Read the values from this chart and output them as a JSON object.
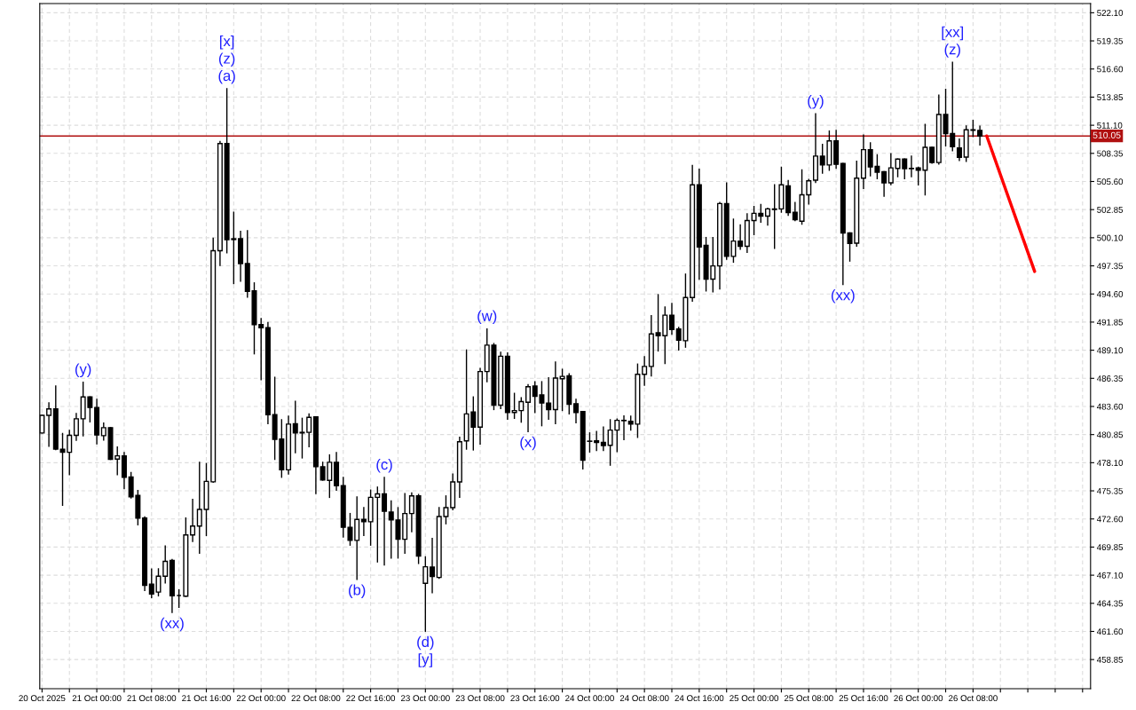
{
  "chart_data": {
    "type": "candlestick",
    "xlim": [
      "2025-10-20T15:40",
      "2025-10-27T01:10"
    ],
    "ylim": [
      456.0,
      523.0
    ],
    "grid": true,
    "yticks": [
      {
        "value": 522.1,
        "label": "522.10"
      },
      {
        "value": 519.35,
        "label": "519.35"
      },
      {
        "value": 516.6,
        "label": "516.60"
      },
      {
        "value": 513.85,
        "label": "513.85"
      },
      {
        "value": 511.1,
        "label": "511.10"
      },
      {
        "value": 508.35,
        "label": "508.35"
      },
      {
        "value": 505.6,
        "label": "505.60"
      },
      {
        "value": 502.85,
        "label": "502.85"
      },
      {
        "value": 500.1,
        "label": "500.10"
      },
      {
        "value": 497.35,
        "label": "497.35"
      },
      {
        "value": 494.6,
        "label": "494.60"
      },
      {
        "value": 491.85,
        "label": "491.85"
      },
      {
        "value": 489.1,
        "label": "489.10"
      },
      {
        "value": 486.35,
        "label": "486.35"
      },
      {
        "value": 483.6,
        "label": "483.60"
      },
      {
        "value": 480.85,
        "label": "480.85"
      },
      {
        "value": 478.1,
        "label": "478.10"
      },
      {
        "value": 475.35,
        "label": "475.35"
      },
      {
        "value": 472.6,
        "label": "472.60"
      },
      {
        "value": 469.85,
        "label": "469.85"
      },
      {
        "value": 467.1,
        "label": "467.10"
      },
      {
        "value": 464.35,
        "label": "464.35"
      },
      {
        "value": 461.6,
        "label": "461.60"
      },
      {
        "value": 458.85,
        "label": "458.85"
      }
    ],
    "xticks": [
      {
        "value": "2025-10-20T16:00",
        "label": "20 Oct 2025"
      },
      {
        "value": "2025-10-20T20:00",
        "label": null
      },
      {
        "value": "2025-10-21T00:00",
        "label": "21 Oct 00:00"
      },
      {
        "value": "2025-10-21T04:00",
        "label": null
      },
      {
        "value": "2025-10-21T08:00",
        "label": "21 Oct 08:00"
      },
      {
        "value": "2025-10-21T12:00",
        "label": null
      },
      {
        "value": "2025-10-21T16:00",
        "label": "21 Oct 16:00"
      },
      {
        "value": "2025-10-21T20:00",
        "label": null
      },
      {
        "value": "2025-10-22T00:00",
        "label": "22 Oct 00:00"
      },
      {
        "value": "2025-10-22T04:00",
        "label": null
      },
      {
        "value": "2025-10-22T08:00",
        "label": "22 Oct 08:00"
      },
      {
        "value": "2025-10-22T12:00",
        "label": null
      },
      {
        "value": "2025-10-22T16:00",
        "label": "22 Oct 16:00"
      },
      {
        "value": "2025-10-22T20:00",
        "label": null
      },
      {
        "value": "2025-10-23T00:00",
        "label": "23 Oct 00:00"
      },
      {
        "value": "2025-10-23T04:00",
        "label": null
      },
      {
        "value": "2025-10-23T08:00",
        "label": "23 Oct 08:00"
      },
      {
        "value": "2025-10-23T12:00",
        "label": null
      },
      {
        "value": "2025-10-23T16:00",
        "label": "23 Oct 16:00"
      },
      {
        "value": "2025-10-23T20:00",
        "label": null
      },
      {
        "value": "2025-10-24T00:00",
        "label": "24 Oct 00:00"
      },
      {
        "value": "2025-10-24T04:00",
        "label": null
      },
      {
        "value": "2025-10-24T08:00",
        "label": "24 Oct 08:00"
      },
      {
        "value": "2025-10-24T12:00",
        "label": null
      },
      {
        "value": "2025-10-24T16:00",
        "label": "24 Oct 16:00"
      },
      {
        "value": "2025-10-24T20:00",
        "label": null
      },
      {
        "value": "2025-10-25T00:00",
        "label": "25 Oct 00:00"
      },
      {
        "value": "2025-10-25T04:00",
        "label": null
      },
      {
        "value": "2025-10-25T08:00",
        "label": "25 Oct 08:00"
      },
      {
        "value": "2025-10-25T12:00",
        "label": null
      },
      {
        "value": "2025-10-25T16:00",
        "label": "25 Oct 16:00"
      },
      {
        "value": "2025-10-25T20:00",
        "label": null
      },
      {
        "value": "2025-10-26T00:00",
        "label": "26 Oct 00:00"
      },
      {
        "value": "2025-10-26T04:00",
        "label": null
      },
      {
        "value": "2025-10-26T08:00",
        "label": "26 Oct 08:00"
      },
      {
        "value": "2025-10-26T12:00",
        "label": null
      },
      {
        "value": "2025-10-26T16:00",
        "label": null
      },
      {
        "value": "2025-10-26T20:00",
        "label": null
      },
      {
        "value": "2025-10-27T00:00",
        "label": null
      }
    ],
    "ref_lines": [
      {
        "axis": "y",
        "value": 510.05,
        "label": "510.05",
        "color": "#b01010"
      }
    ],
    "series": [
      {
        "color": "#000000",
        "x": [
          "2025-10-20T16:00",
          "2025-10-20T17:00",
          "2025-10-20T18:00",
          "2025-10-20T19:00",
          "2025-10-20T20:00",
          "2025-10-20T21:00",
          "2025-10-20T22:00",
          "2025-10-20T23:00",
          "2025-10-21T00:00",
          "2025-10-21T01:00",
          "2025-10-21T02:00",
          "2025-10-21T03:00",
          "2025-10-21T04:00",
          "2025-10-21T05:00",
          "2025-10-21T06:00",
          "2025-10-21T07:00",
          "2025-10-21T08:00",
          "2025-10-21T09:00",
          "2025-10-21T10:00",
          "2025-10-21T11:00",
          "2025-10-21T12:00",
          "2025-10-21T13:00",
          "2025-10-21T14:00",
          "2025-10-21T15:00",
          "2025-10-21T16:00",
          "2025-10-21T17:00",
          "2025-10-21T18:00",
          "2025-10-21T19:00",
          "2025-10-21T20:00",
          "2025-10-21T21:00",
          "2025-10-21T22:00",
          "2025-10-21T23:00",
          "2025-10-22T00:00",
          "2025-10-22T01:00",
          "2025-10-22T02:00",
          "2025-10-22T03:00",
          "2025-10-22T04:00",
          "2025-10-22T05:00",
          "2025-10-22T06:00",
          "2025-10-22T07:00",
          "2025-10-22T08:00",
          "2025-10-22T09:00",
          "2025-10-22T10:00",
          "2025-10-22T11:00",
          "2025-10-22T12:00",
          "2025-10-22T13:00",
          "2025-10-22T14:00",
          "2025-10-22T15:00",
          "2025-10-22T16:00",
          "2025-10-22T17:00",
          "2025-10-22T18:00",
          "2025-10-22T19:00",
          "2025-10-22T20:00",
          "2025-10-22T21:00",
          "2025-10-22T22:00",
          "2025-10-22T23:00",
          "2025-10-23T00:00",
          "2025-10-23T01:00",
          "2025-10-23T02:00",
          "2025-10-23T03:00",
          "2025-10-23T04:00",
          "2025-10-23T05:00",
          "2025-10-23T06:00",
          "2025-10-23T07:00",
          "2025-10-23T08:00",
          "2025-10-23T09:00",
          "2025-10-23T10:00",
          "2025-10-23T11:00",
          "2025-10-23T12:00",
          "2025-10-23T13:00",
          "2025-10-23T14:00",
          "2025-10-23T15:00",
          "2025-10-23T16:00",
          "2025-10-23T17:00",
          "2025-10-23T18:00",
          "2025-10-23T19:00",
          "2025-10-23T20:00",
          "2025-10-23T21:00",
          "2025-10-23T22:00",
          "2025-10-23T23:00",
          "2025-10-24T00:00",
          "2025-10-24T01:00",
          "2025-10-24T02:00",
          "2025-10-24T03:00",
          "2025-10-24T04:00",
          "2025-10-24T05:00",
          "2025-10-24T06:00",
          "2025-10-24T07:00",
          "2025-10-24T08:00",
          "2025-10-24T09:00",
          "2025-10-24T10:00",
          "2025-10-24T11:00",
          "2025-10-24T12:00",
          "2025-10-24T13:00",
          "2025-10-24T14:00",
          "2025-10-24T15:00",
          "2025-10-24T16:00",
          "2025-10-24T17:00",
          "2025-10-24T18:00",
          "2025-10-24T19:00",
          "2025-10-24T20:00",
          "2025-10-24T21:00",
          "2025-10-24T22:00",
          "2025-10-24T23:00",
          "2025-10-25T00:00",
          "2025-10-25T01:00",
          "2025-10-25T02:00",
          "2025-10-25T03:00",
          "2025-10-25T04:00",
          "2025-10-25T05:00",
          "2025-10-25T06:00",
          "2025-10-25T07:00",
          "2025-10-25T08:00",
          "2025-10-25T09:00",
          "2025-10-25T10:00",
          "2025-10-25T11:00",
          "2025-10-25T12:00",
          "2025-10-25T13:00",
          "2025-10-25T14:00",
          "2025-10-25T15:00",
          "2025-10-25T16:00",
          "2025-10-25T17:00",
          "2025-10-25T18:00",
          "2025-10-25T19:00",
          "2025-10-25T20:00",
          "2025-10-25T21:00",
          "2025-10-25T22:00",
          "2025-10-25T23:00",
          "2025-10-26T00:00",
          "2025-10-26T01:00",
          "2025-10-26T02:00",
          "2025-10-26T03:00",
          "2025-10-26T04:00",
          "2025-10-26T05:00",
          "2025-10-26T06:00",
          "2025-10-26T07:00",
          "2025-10-26T08:00",
          "2025-10-26T09:00"
        ],
        "ohlc": [
          [
            481.01,
            482.73,
            481.01,
            482.73
          ],
          [
            482.73,
            483.96,
            479.72,
            483.36
          ],
          [
            483.36,
            485.59,
            479.38,
            479.43
          ],
          [
            479.41,
            480.95,
            473.93,
            479.12
          ],
          [
            479.12,
            481.27,
            476.94,
            480.78
          ],
          [
            480.78,
            482.9,
            480.29,
            482.39
          ],
          [
            482.39,
            485.97,
            480.72,
            484.53
          ],
          [
            484.53,
            484.53,
            482.1,
            483.5
          ],
          [
            483.5,
            484.3,
            479.95,
            480.81
          ],
          [
            480.75,
            481.98,
            480.32,
            481.53
          ],
          [
            481.53,
            481.53,
            478.43,
            478.43
          ],
          [
            478.46,
            479.63,
            476.94,
            478.77
          ],
          [
            478.77,
            479.09,
            475.57,
            476.68
          ],
          [
            476.71,
            477.14,
            474.65,
            474.76
          ],
          [
            474.91,
            475.37,
            472.04,
            472.67
          ],
          [
            472.7,
            472.79,
            465.6,
            466.11
          ],
          [
            466.23,
            467.69,
            464.91,
            465.25
          ],
          [
            465.45,
            467.72,
            465.08,
            467.0
          ],
          [
            467.0,
            469.95,
            466.34,
            468.46
          ],
          [
            468.55,
            468.63,
            463.45,
            465.08
          ],
          [
            465.11,
            465.65,
            463.96,
            465.11
          ],
          [
            465.05,
            472.7,
            465.05,
            471.04
          ],
          [
            471.04,
            474.51,
            470.41,
            471.9
          ],
          [
            471.9,
            478.14,
            469.26,
            473.53
          ],
          [
            473.53,
            478.0,
            470.98,
            476.28
          ],
          [
            476.23,
            500.06,
            476.2,
            498.83
          ],
          [
            498.83,
            509.51,
            497.4,
            509.31
          ],
          [
            509.31,
            514.67,
            498.63,
            499.92
          ],
          [
            499.92,
            502.58,
            495.62,
            500.0
          ],
          [
            500.0,
            500.72,
            495.85,
            497.57
          ],
          [
            497.57,
            500.78,
            494.3,
            494.85
          ],
          [
            494.9,
            495.68,
            488.75,
            491.6
          ],
          [
            491.6,
            492.2,
            486.22,
            491.3
          ],
          [
            491.3,
            491.8,
            481.93,
            482.78
          ],
          [
            482.81,
            486.45,
            478.43,
            480.38
          ],
          [
            480.41,
            482.3,
            476.68,
            477.4
          ],
          [
            477.4,
            482.64,
            477.0,
            481.87
          ],
          [
            481.92,
            484.1,
            479.09,
            481.01
          ],
          [
            481.01,
            482.44,
            478.57,
            481.07
          ],
          [
            481.07,
            482.87,
            479.66,
            482.53
          ],
          [
            482.58,
            482.58,
            475.08,
            477.71
          ],
          [
            477.71,
            478.14,
            476.4,
            476.42
          ],
          [
            476.37,
            478.86,
            474.71,
            478.14
          ],
          [
            478.14,
            479.09,
            475.42,
            475.85
          ],
          [
            475.85,
            476.65,
            470.84,
            471.78
          ],
          [
            471.78,
            473.13,
            470.04,
            470.5
          ],
          [
            470.5,
            474.76,
            466.69,
            472.56
          ],
          [
            472.56,
            473.7,
            470.98,
            472.33
          ],
          [
            472.33,
            475.42,
            470.04,
            474.71
          ],
          [
            474.71,
            475.71,
            468.4,
            475.05
          ],
          [
            475.05,
            476.65,
            468.11,
            473.36
          ],
          [
            473.27,
            474.36,
            468.78,
            472.5
          ],
          [
            472.5,
            473.7,
            468.78,
            470.61
          ],
          [
            470.61,
            475.08,
            469.26,
            473.13
          ],
          [
            473.13,
            475.14,
            471.36,
            474.85
          ],
          [
            474.85,
            474.99,
            468.25,
            468.98
          ],
          [
            466.31,
            468.89,
            461.62,
            467.92
          ],
          [
            467.89,
            470.7,
            465.4,
            466.97
          ],
          [
            466.88,
            473.7,
            466.8,
            472.84
          ],
          [
            472.84,
            474.85,
            472.13,
            473.7
          ],
          [
            473.7,
            476.99,
            473.5,
            476.22
          ],
          [
            476.22,
            480.58,
            474.71,
            480.15
          ],
          [
            480.24,
            489.12,
            479.43,
            482.87
          ],
          [
            483.07,
            484.53,
            479.35,
            481.58
          ],
          [
            481.58,
            487.31,
            479.92,
            487.02
          ],
          [
            487.02,
            491.18,
            486.02,
            489.6
          ],
          [
            489.6,
            489.75,
            483.3,
            483.73
          ],
          [
            483.73,
            488.89,
            483.39,
            488.51
          ],
          [
            488.51,
            488.83,
            482.36,
            483.01
          ],
          [
            483.01,
            484.88,
            482.44,
            483.2
          ],
          [
            483.2,
            484.45,
            482.07,
            484.07
          ],
          [
            484.01,
            485.74,
            481.15,
            485.53
          ],
          [
            485.59,
            486.02,
            483.01,
            484.59
          ],
          [
            484.73,
            486.02,
            481.72,
            483.93
          ],
          [
            483.93,
            486.4,
            482.36,
            483.3
          ],
          [
            483.3,
            487.94,
            481.93,
            486.37
          ],
          [
            486.31,
            487.23,
            483.21,
            486.54
          ],
          [
            486.6,
            486.79,
            482.87,
            483.82
          ],
          [
            483.87,
            484.3,
            482.01,
            483.01
          ],
          [
            483.1,
            483.1,
            477.49,
            478.35
          ],
          [
            480.19,
            481.01,
            479.15,
            480.21
          ],
          [
            480.24,
            481.15,
            479.29,
            480.07
          ],
          [
            480.09,
            481.58,
            479.29,
            479.78
          ],
          [
            479.8,
            482.3,
            477.86,
            481.29
          ],
          [
            481.29,
            482.36,
            479.2,
            482.24
          ],
          [
            482.24,
            482.67,
            480.35,
            482.21
          ],
          [
            482.15,
            482.64,
            481.29,
            481.87
          ],
          [
            481.87,
            487.74,
            480.58,
            486.74
          ],
          [
            486.74,
            488.46,
            485.68,
            487.51
          ],
          [
            487.51,
            492.47,
            486.59,
            490.69
          ],
          [
            490.81,
            494.53,
            489.03,
            490.52
          ],
          [
            490.52,
            493.33,
            487.8,
            492.53
          ],
          [
            492.53,
            493.67,
            490.66,
            491.12
          ],
          [
            491.18,
            491.32,
            489.12,
            490.09
          ],
          [
            490.03,
            496.54,
            489.4,
            494.25
          ],
          [
            494.25,
            507.16,
            493.9,
            505.27
          ],
          [
            505.27,
            506.79,
            496.05,
            499.2
          ],
          [
            499.35,
            500.12,
            494.9,
            496.05
          ],
          [
            496.05,
            500.12,
            494.82,
            497.34
          ],
          [
            497.34,
            503.55,
            495.1,
            503.44
          ],
          [
            503.44,
            505.45,
            498.0,
            498.28
          ],
          [
            498.28,
            501.92,
            497.71,
            499.77
          ],
          [
            499.77,
            501.35,
            498.97,
            499.26
          ],
          [
            499.26,
            502.44,
            498.68,
            501.78
          ],
          [
            501.78,
            503.15,
            500.4,
            502.49
          ],
          [
            502.49,
            503.35,
            501.63,
            502.21
          ],
          [
            502.21,
            502.98,
            501.35,
            502.92
          ],
          [
            502.92,
            505.27,
            499.06,
            502.87
          ],
          [
            502.92,
            506.99,
            502.6,
            505.27
          ],
          [
            505.16,
            505.7,
            502.3,
            502.55
          ],
          [
            502.58,
            503.55,
            501.78,
            501.86
          ],
          [
            501.72,
            506.73,
            501.43,
            504.3
          ],
          [
            504.3,
            505.79,
            503.41,
            505.67
          ],
          [
            505.73,
            512.23,
            505.5,
            508.08
          ],
          [
            508.08,
            509.23,
            506.42,
            507.22
          ],
          [
            507.22,
            510.52,
            506.71,
            509.57
          ],
          [
            509.57,
            510.6,
            506.9,
            507.28
          ],
          [
            507.36,
            507.36,
            495.53,
            500.57
          ],
          [
            500.57,
            500.57,
            497.82,
            499.54
          ],
          [
            499.57,
            507.57,
            499.29,
            505.93
          ],
          [
            505.93,
            510.14,
            504.93,
            508.71
          ],
          [
            508.71,
            509.37,
            506.16,
            507.02
          ],
          [
            507.08,
            508.2,
            505.87,
            506.5
          ],
          [
            506.56,
            506.56,
            504.16,
            505.47
          ],
          [
            505.47,
            508.31,
            505.3,
            506.93
          ],
          [
            506.88,
            507.79,
            506.08,
            507.79
          ],
          [
            507.79,
            507.79,
            505.87,
            506.85
          ],
          [
            506.86,
            508.08,
            506.08,
            506.88
          ],
          [
            506.93,
            507.0,
            505.27,
            506.71
          ],
          [
            506.71,
            511.17,
            504.3,
            508.94
          ],
          [
            508.94,
            508.94,
            507.4,
            507.45
          ],
          [
            507.45,
            514.04,
            507.3,
            512.15
          ],
          [
            512.15,
            514.61,
            509.08,
            510.29
          ],
          [
            510.29,
            517.25,
            508.6,
            509.0
          ],
          [
            508.88,
            509.74,
            507.65,
            507.97
          ],
          [
            507.99,
            511.03,
            507.57,
            510.66
          ],
          [
            510.6,
            511.58,
            509.99,
            510.66
          ],
          [
            510.6,
            511.0,
            509.17,
            510.05
          ]
        ]
      },
      {
        "type": "line",
        "color": "#ff0000",
        "x": [
          "2025-10-26T10:00",
          "2025-10-26T17:00"
        ],
        "values": [
          510.05,
          496.8
        ]
      }
    ],
    "annotations": [
      {
        "text": "(y)",
        "x": "2025-10-20T22:00",
        "y": 485.97
      },
      {
        "text": "(xx)",
        "x": "2025-10-21T11:00",
        "y": 463.45
      },
      {
        "text": "(a)",
        "x": "2025-10-21T19:00",
        "y": 514.67
      },
      {
        "text": "(z)",
        "x": "2025-10-21T19:00",
        "y": 514.67
      },
      {
        "text": "[x]",
        "x": "2025-10-21T19:00",
        "y": 514.67
      },
      {
        "text": "(b)",
        "x": "2025-10-22T14:00",
        "y": 466.69
      },
      {
        "text": "(c)",
        "x": "2025-10-22T18:00",
        "y": 476.65
      },
      {
        "text": "(d)",
        "x": "2025-10-23T00:00",
        "y": 461.62
      },
      {
        "text": "[y]",
        "x": "2025-10-23T00:00",
        "y": 461.62
      },
      {
        "text": "(w)",
        "x": "2025-10-23T09:00",
        "y": 491.18
      },
      {
        "text": "(x)",
        "x": "2025-10-23T15:00",
        "y": 481.15
      },
      {
        "text": "(y)",
        "x": "2025-10-25T09:00",
        "y": 512.23
      },
      {
        "text": "(xx)",
        "x": "2025-10-25T13:00",
        "y": 495.53
      },
      {
        "text": "(z)",
        "x": "2025-10-26T05:00",
        "y": 517.25
      },
      {
        "text": "[xx]",
        "x": "2025-10-26T05:00",
        "y": 517.25
      }
    ]
  }
}
